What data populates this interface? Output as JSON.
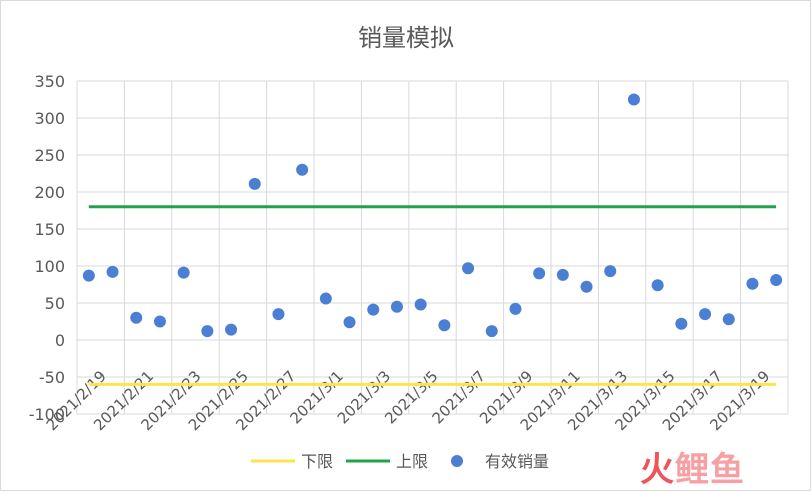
{
  "chart_data": {
    "type": "scatter",
    "title": "销量模拟",
    "xlabel": "",
    "ylabel": "",
    "ylim": [
      -100,
      350
    ],
    "yticks": [
      -100,
      -50,
      0,
      50,
      100,
      150,
      200,
      250,
      300,
      350
    ],
    "x_tick_labels": [
      "2021/2/19",
      "2021/2/21",
      "2021/2/23",
      "2021/2/25",
      "2021/2/27",
      "2021/3/1",
      "2021/3/3",
      "2021/3/5",
      "2021/3/7",
      "2021/3/9",
      "2021/3/11",
      "2021/3/13",
      "2021/3/15",
      "2021/3/17",
      "2021/3/19"
    ],
    "dates": [
      "2021/2/19",
      "2021/2/20",
      "2021/2/21",
      "2021/2/22",
      "2021/2/23",
      "2021/2/24",
      "2021/2/25",
      "2021/2/26",
      "2021/2/27",
      "2021/2/28",
      "2021/3/1",
      "2021/3/2",
      "2021/3/3",
      "2021/3/4",
      "2021/3/5",
      "2021/3/6",
      "2021/3/7",
      "2021/3/8",
      "2021/3/9",
      "2021/3/10",
      "2021/3/11",
      "2021/3/12",
      "2021/3/13",
      "2021/3/14",
      "2021/3/15",
      "2021/3/16",
      "2021/3/17",
      "2021/3/18",
      "2021/3/19",
      "2021/3/20"
    ],
    "grid": true,
    "legend_position": "bottom",
    "series": [
      {
        "name": "下限",
        "kind": "line",
        "color": "#ffe34d",
        "values": [
          -60,
          -60,
          -60,
          -60,
          -60,
          -60,
          -60,
          -60,
          -60,
          -60,
          -60,
          -60,
          -60,
          -60,
          -60,
          -60,
          -60,
          -60,
          -60,
          -60,
          -60,
          -60,
          -60,
          -60,
          -60,
          -60,
          -60,
          -60,
          -60,
          -60
        ]
      },
      {
        "name": "上限",
        "kind": "line",
        "color": "#21a447",
        "values": [
          180,
          180,
          180,
          180,
          180,
          180,
          180,
          180,
          180,
          180,
          180,
          180,
          180,
          180,
          180,
          180,
          180,
          180,
          180,
          180,
          180,
          180,
          180,
          180,
          180,
          180,
          180,
          180,
          180,
          180
        ]
      },
      {
        "name": "有效销量",
        "kind": "scatter",
        "color": "#4a7fd3",
        "values": [
          87,
          92,
          30,
          25,
          91,
          12,
          14,
          211,
          35,
          230,
          56,
          24,
          41,
          45,
          48,
          20,
          97,
          12,
          42,
          90,
          88,
          72,
          93,
          325,
          74,
          22,
          35,
          28,
          76,
          81
        ]
      }
    ]
  },
  "watermark": {
    "part1": "火",
    "part2": "鲤鱼"
  }
}
